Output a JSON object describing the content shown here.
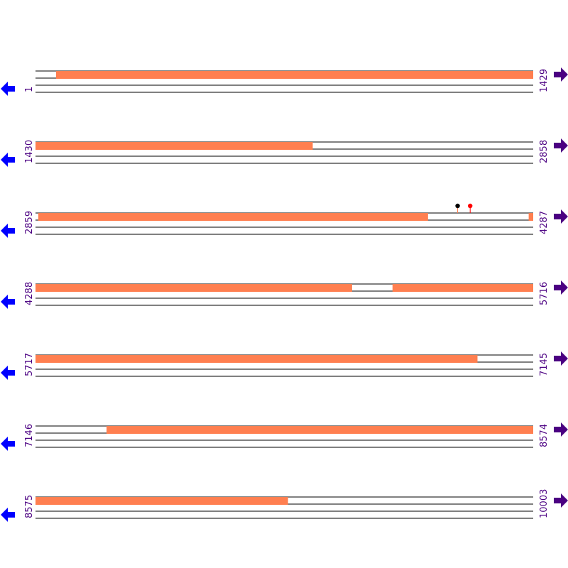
{
  "colors": {
    "feature": "#FF7F50",
    "track_line": "#000000",
    "label": "#4B0082",
    "arrow_left": "#0000FF",
    "arrow_right": "#4B0082",
    "marker_black": "#000000",
    "marker_red": "#FF0000"
  },
  "icons": {
    "left": "left-arrow-icon",
    "right": "right-arrow-icon"
  },
  "rows": [
    {
      "start_label": "1",
      "end_label": "1429",
      "start": 1,
      "end": 1429,
      "features": [
        {
          "from": 60,
          "to": 1429
        }
      ]
    },
    {
      "start_label": "1430",
      "end_label": "2858",
      "start": 1430,
      "end": 2858,
      "features": [
        {
          "from": 1430,
          "to": 2225
        }
      ]
    },
    {
      "start_label": "2859",
      "end_label": "4287",
      "start": 2859,
      "end": 4287,
      "features": [
        {
          "from": 2867,
          "to": 3985
        },
        {
          "from": 4275,
          "to": 4287
        }
      ],
      "markers": [
        {
          "pos": 4071,
          "color": "black"
        },
        {
          "pos": 4107,
          "color": "red"
        }
      ]
    },
    {
      "start_label": "4288",
      "end_label": "5716",
      "start": 4288,
      "end": 5716,
      "features": [
        {
          "from": 4288,
          "to": 5196
        },
        {
          "from": 5313,
          "to": 5716
        }
      ]
    },
    {
      "start_label": "5717",
      "end_label": "7145",
      "start": 5717,
      "end": 7145,
      "features": [
        {
          "from": 5717,
          "to": 6985
        }
      ]
    },
    {
      "start_label": "7146",
      "end_label": "8574",
      "start": 7146,
      "end": 8574,
      "features": [
        {
          "from": 7350,
          "to": 8574
        }
      ]
    },
    {
      "start_label": "8575",
      "end_label": "10003",
      "start": 8575,
      "end": 10003,
      "features": [
        {
          "from": 8575,
          "to": 9299
        }
      ]
    }
  ]
}
